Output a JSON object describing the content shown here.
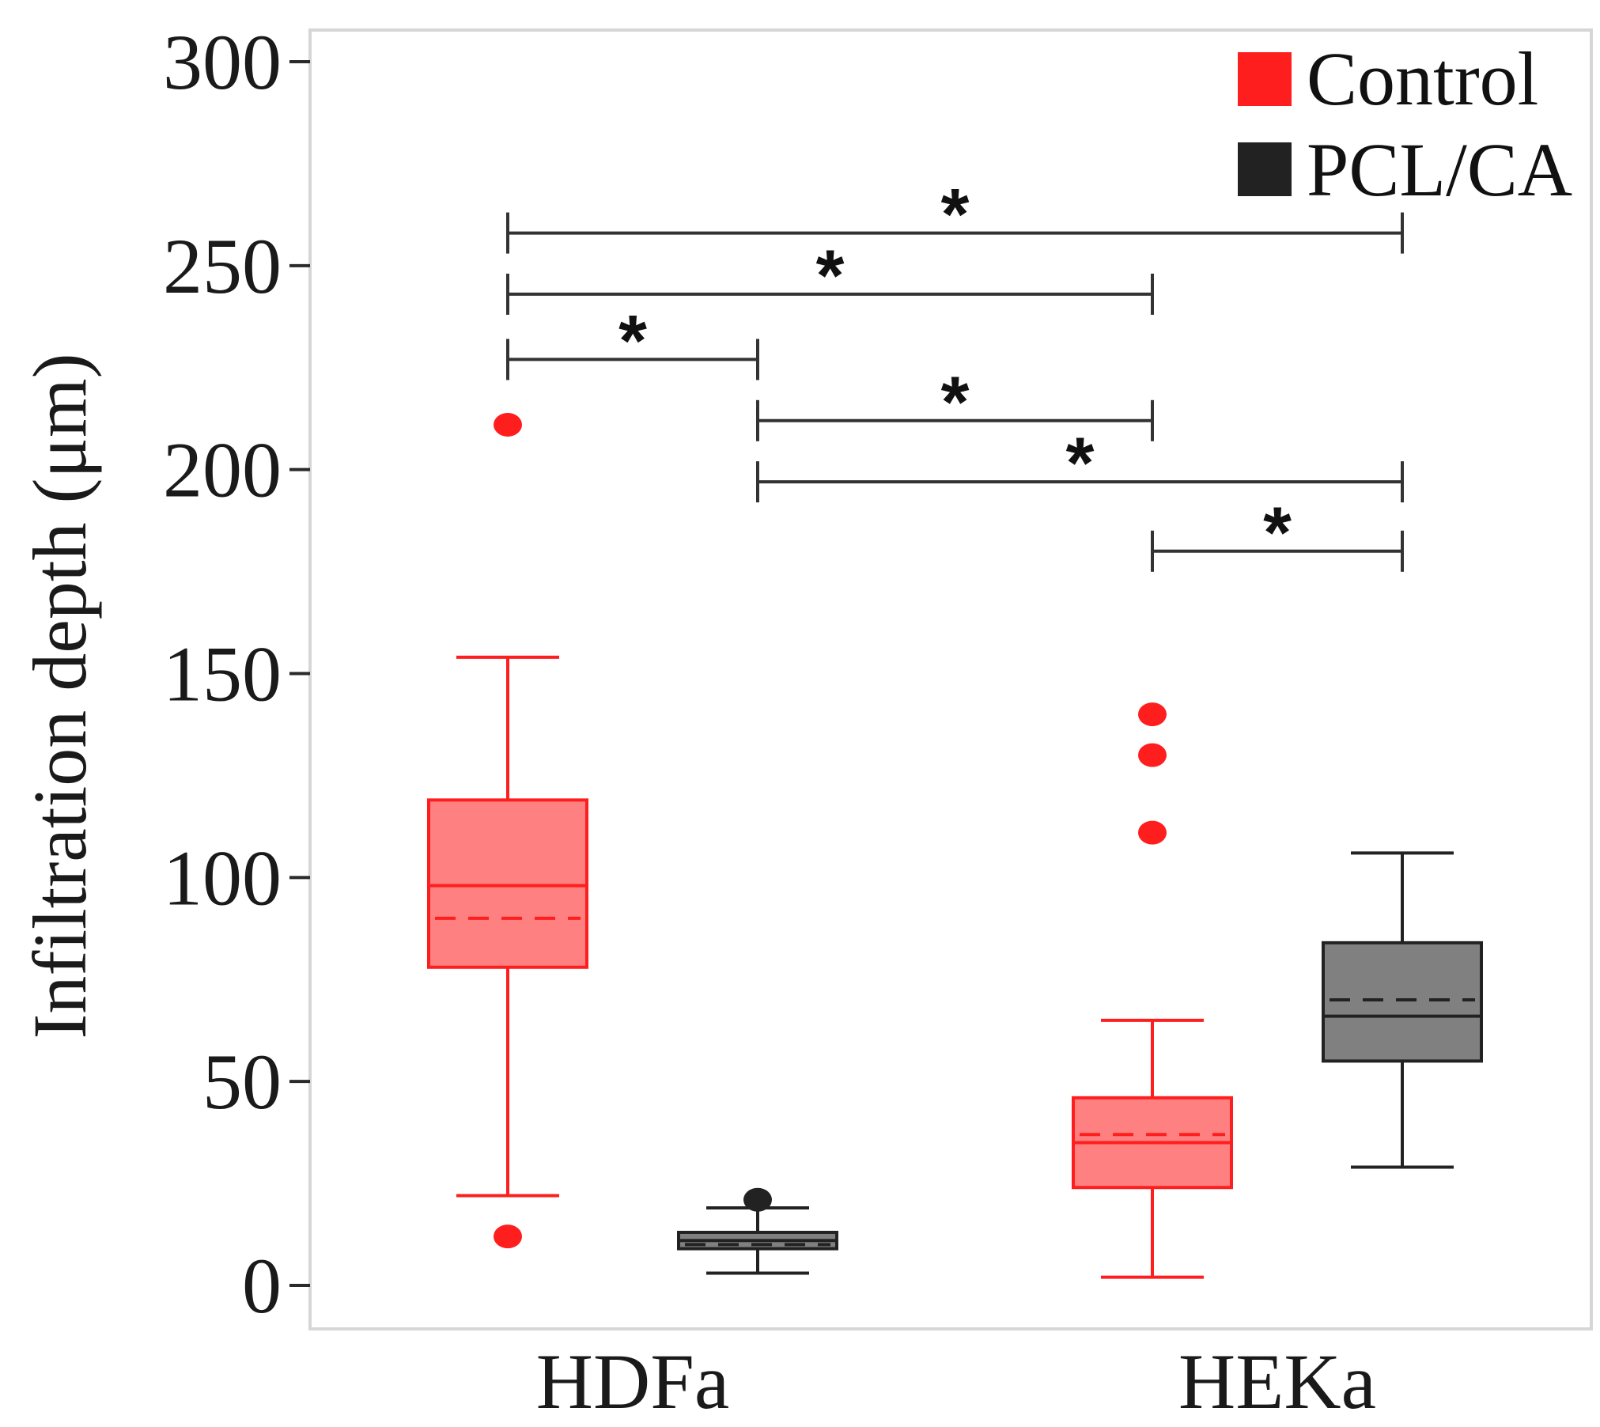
{
  "chart_data": {
    "type": "box",
    "title": "",
    "xlabel": "",
    "ylabel": "Infiltration depth (μm)",
    "ylim": [
      0,
      300
    ],
    "yticks": [
      0,
      50,
      100,
      150,
      200,
      250,
      300
    ],
    "categories": [
      "HDFa",
      "HEKa"
    ],
    "legend": {
      "position": "top-right",
      "entries": [
        {
          "label": "Control",
          "color": "#ff1e1e"
        },
        {
          "label": "PCL/CA",
          "color": "#222222"
        }
      ]
    },
    "series": [
      {
        "name": "Control",
        "fill": "#ff8080",
        "edge": "#ff1e1e",
        "boxes": [
          {
            "category": "HDFa",
            "whisker_low": 22,
            "q1": 78,
            "median": 98,
            "mean": 90,
            "q3": 119,
            "whisker_high": 154,
            "outliers": [
              211,
              12
            ]
          },
          {
            "category": "HEKa",
            "whisker_low": 2,
            "q1": 24,
            "median": 35,
            "mean": 37,
            "q3": 46,
            "whisker_high": 65,
            "outliers": [
              140,
              130,
              111
            ]
          }
        ]
      },
      {
        "name": "PCL/CA",
        "fill": "#808080",
        "edge": "#222222",
        "boxes": [
          {
            "category": "HDFa",
            "whisker_low": 3,
            "q1": 9,
            "median": 11,
            "mean": 10,
            "q3": 13,
            "whisker_high": 19,
            "outliers": [
              21
            ]
          },
          {
            "category": "HEKa",
            "whisker_low": 29,
            "q1": 55,
            "median": 66,
            "mean": 70,
            "q3": 84,
            "whisker_high": 106,
            "outliers": []
          }
        ]
      }
    ],
    "significance": [
      {
        "from": "HDFa Control",
        "to": "HEKa PCL/CA",
        "y": 258,
        "label": "*"
      },
      {
        "from": "HDFa Control",
        "to": "HEKa Control",
        "y": 243,
        "label": "*"
      },
      {
        "from": "HDFa Control",
        "to": "HDFa PCL/CA",
        "y": 227,
        "label": "*"
      },
      {
        "from": "HDFa PCL/CA",
        "to": "HEKa Control",
        "y": 212,
        "label": "*"
      },
      {
        "from": "HDFa PCL/CA",
        "to": "HEKa PCL/CA",
        "y": 197,
        "label": "*"
      },
      {
        "from": "HEKa Control",
        "to": "HEKa PCL/CA",
        "y": 180,
        "label": "*"
      }
    ]
  }
}
